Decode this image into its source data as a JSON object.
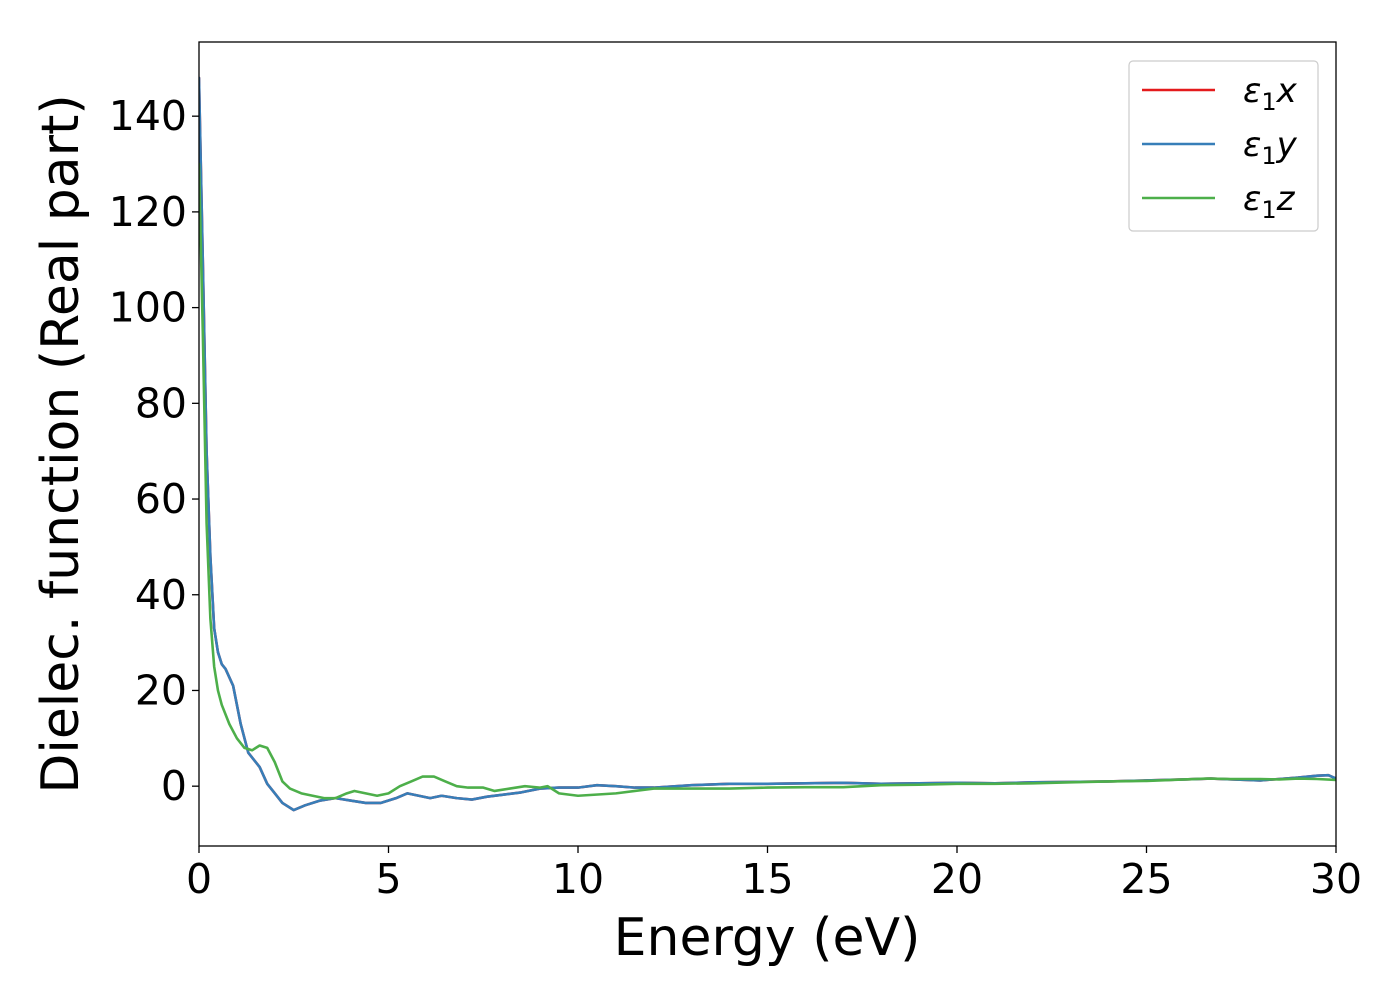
{
  "chart_data": {
    "type": "line",
    "title": "",
    "xlabel": "Energy (eV)",
    "ylabel": "Dielec. function (Real part)",
    "xlim": [
      0,
      30
    ],
    "ylim": [
      -12.5,
      155.5
    ],
    "xticks": [
      0,
      5,
      10,
      15,
      20,
      25,
      30
    ],
    "yticks": [
      0,
      20,
      40,
      60,
      80,
      100,
      120,
      140
    ],
    "grid": false,
    "legend_position": "top-right",
    "series": [
      {
        "name": "ε₁x",
        "legend_main": "ε",
        "legend_sub": "1",
        "legend_tail": "x",
        "color": "#e41a1c",
        "x": [
          0,
          0.1,
          0.2,
          0.3,
          0.4,
          0.5,
          0.6,
          0.7,
          0.9,
          1.1,
          1.3,
          1.6,
          1.8,
          2.0,
          2.2,
          2.5,
          2.8,
          3.2,
          3.6,
          4.0,
          4.4,
          4.8,
          5.2,
          5.5,
          5.8,
          6.1,
          6.4,
          6.8,
          7.2,
          7.6,
          8.0,
          8.5,
          9.0,
          9.5,
          10.0,
          10.5,
          11.0,
          11.5,
          12.0,
          13.0,
          14.0,
          15.0,
          16.0,
          17.0,
          18.0,
          19.0,
          20.0,
          21.0,
          22.0,
          23.0,
          24.0,
          25.0,
          26.0,
          26.7,
          27.3,
          28.0,
          28.5,
          29.0,
          29.5,
          29.8,
          30.0
        ],
        "y": [
          148,
          110,
          70,
          48,
          33,
          28,
          25.5,
          24.5,
          21,
          13,
          7,
          4,
          0.5,
          -1.5,
          -3.5,
          -5,
          -4,
          -3,
          -2.5,
          -3,
          -3.5,
          -3.5,
          -2.5,
          -1.5,
          -2,
          -2.5,
          -2,
          -2.5,
          -2.8,
          -2.2,
          -1.8,
          -1.3,
          -0.5,
          -0.3,
          -0.3,
          0.2,
          0.0,
          -0.3,
          -0.3,
          0.2,
          0.5,
          0.5,
          0.6,
          0.7,
          0.5,
          0.6,
          0.7,
          0.6,
          0.8,
          0.9,
          1.0,
          1.2,
          1.4,
          1.6,
          1.4,
          1.2,
          1.5,
          1.8,
          2.2,
          2.3,
          1.6
        ]
      },
      {
        "name": "ε₁y",
        "legend_main": "ε",
        "legend_sub": "1",
        "legend_tail": "y",
        "color": "#377eb8",
        "x": [
          0,
          0.1,
          0.2,
          0.3,
          0.4,
          0.5,
          0.6,
          0.7,
          0.9,
          1.1,
          1.3,
          1.6,
          1.8,
          2.0,
          2.2,
          2.5,
          2.8,
          3.2,
          3.6,
          4.0,
          4.4,
          4.8,
          5.2,
          5.5,
          5.8,
          6.1,
          6.4,
          6.8,
          7.2,
          7.6,
          8.0,
          8.5,
          9.0,
          9.5,
          10.0,
          10.5,
          11.0,
          11.5,
          12.0,
          13.0,
          14.0,
          15.0,
          16.0,
          17.0,
          18.0,
          19.0,
          20.0,
          21.0,
          22.0,
          23.0,
          24.0,
          25.0,
          26.0,
          26.7,
          27.3,
          28.0,
          28.5,
          29.0,
          29.5,
          29.8,
          30.0
        ],
        "y": [
          148,
          110,
          70,
          48,
          33,
          28,
          25.5,
          24.5,
          21,
          13,
          7,
          4,
          0.5,
          -1.5,
          -3.5,
          -5,
          -4,
          -3,
          -2.5,
          -3,
          -3.5,
          -3.5,
          -2.5,
          -1.5,
          -2,
          -2.5,
          -2,
          -2.5,
          -2.8,
          -2.2,
          -1.8,
          -1.3,
          -0.5,
          -0.3,
          -0.3,
          0.2,
          0.0,
          -0.3,
          -0.3,
          0.2,
          0.5,
          0.5,
          0.6,
          0.7,
          0.5,
          0.6,
          0.7,
          0.6,
          0.8,
          0.9,
          1.0,
          1.2,
          1.4,
          1.6,
          1.4,
          1.2,
          1.5,
          1.8,
          2.2,
          2.3,
          1.6
        ]
      },
      {
        "name": "ε₁z",
        "legend_main": "ε",
        "legend_sub": "1",
        "legend_tail": "z",
        "color": "#4daf4a",
        "x": [
          0,
          0.1,
          0.2,
          0.3,
          0.4,
          0.5,
          0.6,
          0.8,
          1.0,
          1.2,
          1.4,
          1.6,
          1.8,
          2.0,
          2.2,
          2.4,
          2.7,
          3.0,
          3.3,
          3.6,
          3.9,
          4.1,
          4.4,
          4.7,
          5.0,
          5.3,
          5.6,
          5.9,
          6.2,
          6.5,
          6.8,
          7.1,
          7.5,
          7.8,
          8.2,
          8.6,
          9.0,
          9.2,
          9.5,
          10.0,
          11.0,
          12.0,
          13.0,
          14.0,
          15.0,
          16.0,
          17.0,
          18.0,
          19.0,
          20.0,
          21.0,
          22.0,
          23.0,
          24.0,
          25.0,
          26.0,
          26.6,
          27.2,
          28.0,
          28.5,
          29.0,
          29.5,
          30.0
        ],
        "y": [
          130,
          95,
          55,
          35,
          25,
          20,
          17,
          13,
          10,
          8,
          7.5,
          8.5,
          8,
          5,
          1,
          -0.5,
          -1.5,
          -2,
          -2.5,
          -2.5,
          -1.5,
          -1,
          -1.5,
          -2,
          -1.5,
          0,
          1,
          2,
          2,
          1,
          0,
          -0.3,
          -0.3,
          -1,
          -0.5,
          0.0,
          -0.3,
          0.0,
          -1.5,
          -2,
          -1.5,
          -0.5,
          -0.5,
          -0.5,
          -0.3,
          -0.2,
          -0.2,
          0.2,
          0.3,
          0.5,
          0.5,
          0.6,
          0.8,
          1.0,
          1.1,
          1.4,
          1.6,
          1.5,
          1.5,
          1.4,
          1.6,
          1.5,
          1.3
        ]
      }
    ]
  }
}
